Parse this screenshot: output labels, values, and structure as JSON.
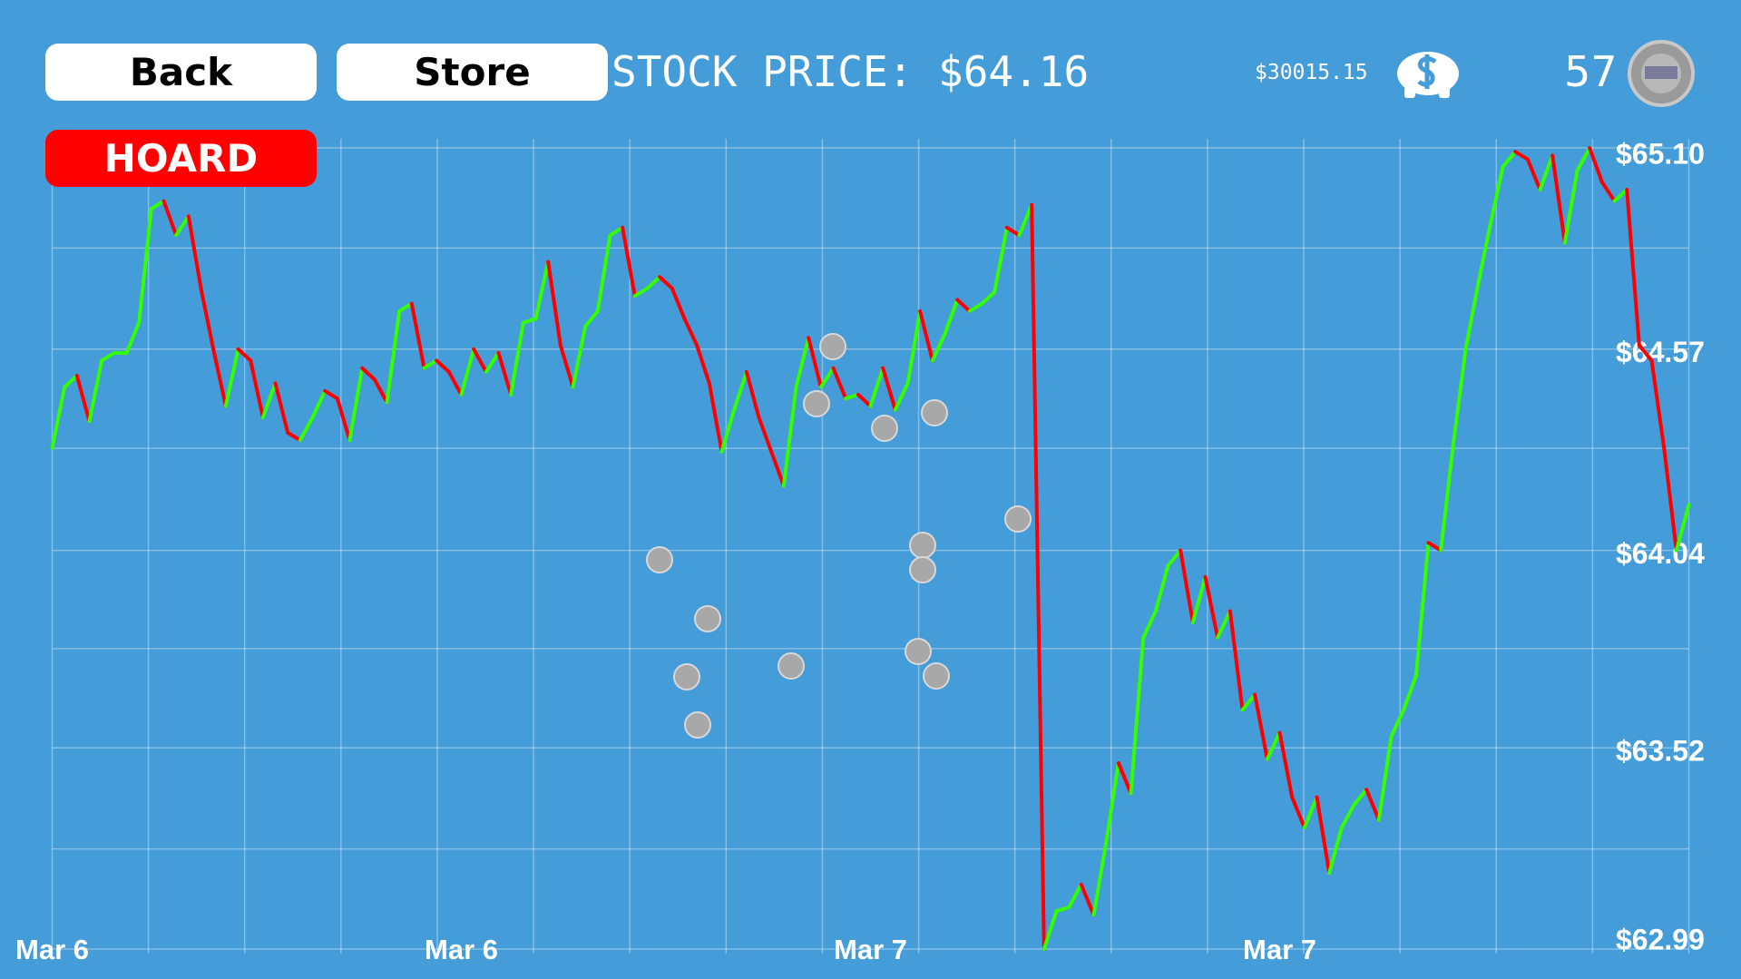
{
  "ui": {
    "back": "Back",
    "store": "Store",
    "hoard": "HOARD",
    "stock_price": "STOCK PRICE: $64.16",
    "money": "$30015.15",
    "coins": "57"
  },
  "chart_data": {
    "type": "line",
    "values": [
      64.31,
      64.47,
      64.5,
      64.38,
      64.54,
      64.56,
      64.56,
      64.64,
      64.94,
      64.96,
      64.87,
      64.92,
      64.73,
      64.57,
      64.42,
      64.57,
      64.54,
      64.39,
      64.48,
      64.35,
      64.33,
      64.39,
      64.46,
      64.44,
      64.33,
      64.52,
      64.49,
      64.43,
      64.67,
      64.69,
      64.52,
      64.54,
      64.51,
      64.45,
      64.57,
      64.51,
      64.56,
      64.45,
      64.64,
      64.65,
      64.8,
      64.58,
      64.47,
      64.63,
      64.67,
      64.87,
      64.89,
      64.71,
      64.73,
      64.76,
      64.73,
      64.65,
      64.58,
      64.48,
      64.3,
      64.41,
      64.51,
      64.39,
      64.3,
      64.21,
      64.47,
      64.6,
      64.47,
      64.52,
      64.44,
      64.45,
      64.42,
      64.52,
      64.41,
      64.48,
      64.67,
      64.54,
      64.61,
      64.7,
      64.67,
      64.69,
      64.72,
      64.89,
      64.87,
      64.95,
      62.99,
      63.09,
      63.1,
      63.16,
      63.08,
      63.27,
      63.48,
      63.4,
      63.81,
      63.88,
      64.0,
      64.04,
      63.85,
      63.97,
      63.81,
      63.88,
      63.62,
      63.66,
      63.49,
      63.56,
      63.39,
      63.31,
      63.39,
      63.19,
      63.31,
      63.37,
      63.41,
      63.33,
      63.55,
      63.62,
      63.71,
      64.06,
      64.04,
      64.32,
      64.57,
      64.74,
      64.9,
      65.05,
      65.09,
      65.07,
      64.99,
      65.08,
      64.85,
      65.04,
      65.1,
      65.01,
      64.96,
      64.99,
      64.58,
      64.54,
      64.31,
      64.04,
      64.16
    ],
    "up_color": "#33ff00",
    "down_color": "#ff0000",
    "ylim": [
      62.99,
      65.1
    ],
    "yticks": [
      {
        "value": 62.99,
        "label": "$62.99"
      },
      {
        "value": 63.52,
        "label": "$63.52"
      },
      {
        "value": 64.04,
        "label": "$64.04"
      },
      {
        "value": 64.57,
        "label": "$64.57"
      },
      {
        "value": 65.1,
        "label": "$65.10"
      }
    ],
    "xlim": [
      0,
      132
    ],
    "xticks": [
      {
        "value": 0,
        "label": "Mar 6"
      },
      {
        "value": 33,
        "label": "Mar 6"
      },
      {
        "value": 66,
        "label": "Mar 7"
      },
      {
        "value": 99,
        "label": "Mar 7"
      }
    ],
    "grid": true
  }
}
